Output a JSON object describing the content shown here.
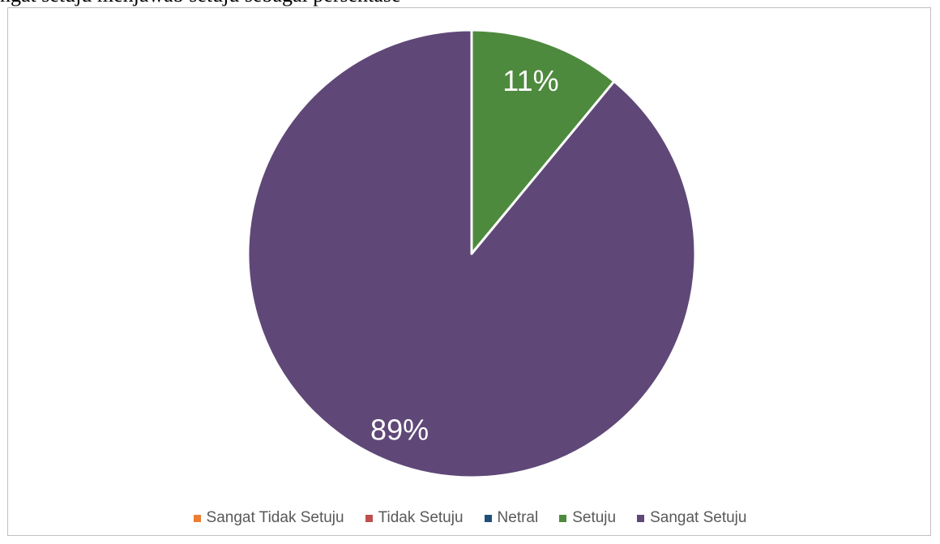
{
  "document": {
    "top_text": "ngat setuju menjawab setuju sebagai persentase"
  },
  "chart_data": {
    "type": "pie",
    "categories": [
      "Sangat Tidak Setuju",
      "Tidak Setuju",
      "Netral",
      "Setuju",
      "Sangat Setuju"
    ],
    "values": [
      0,
      0,
      0,
      11,
      89
    ],
    "value_labels": [
      "",
      "",
      "",
      "11%",
      "89%"
    ],
    "colors": [
      "#ED7D31",
      "#C0504D",
      "#1F4E79",
      "#4E8A3E",
      "#5F4877"
    ],
    "legend_position": "bottom",
    "start_angle": 0,
    "direction": "clockwise"
  }
}
